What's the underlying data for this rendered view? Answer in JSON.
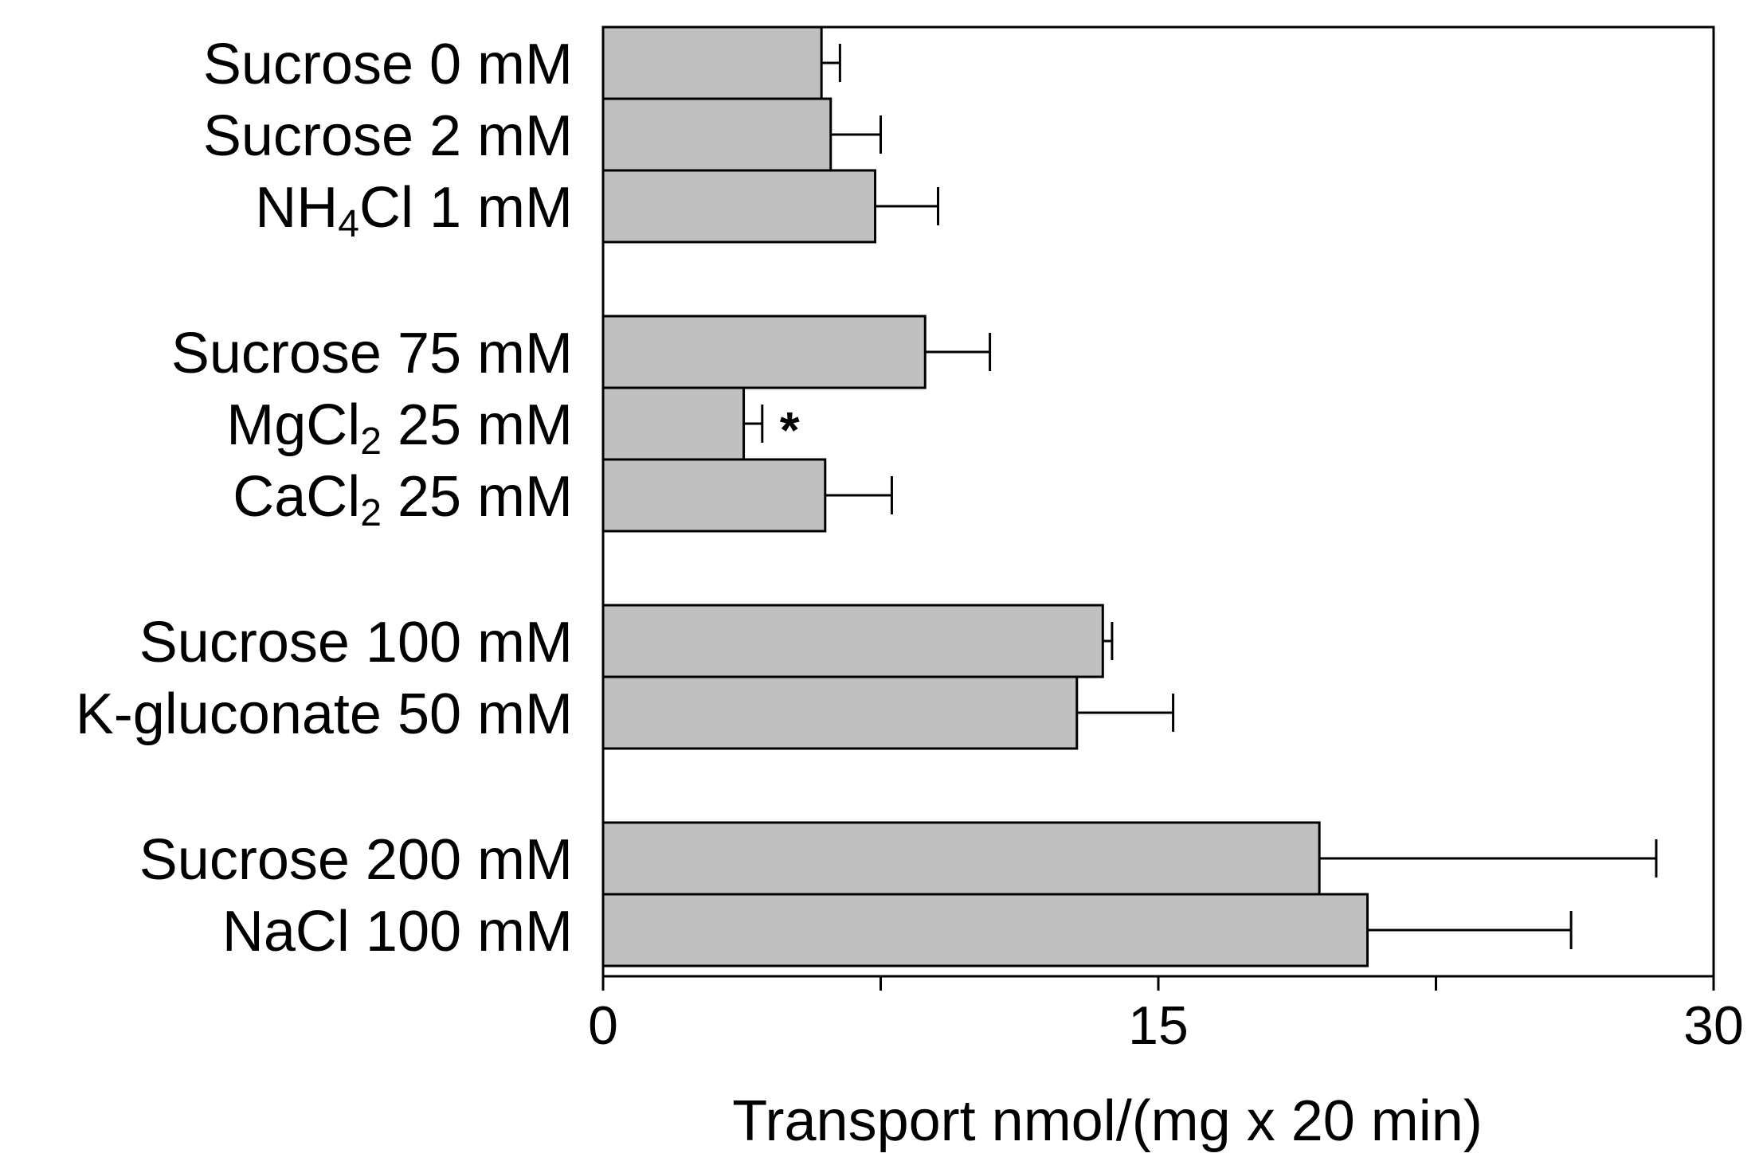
{
  "chart_data": {
    "type": "bar",
    "orientation": "horizontal",
    "title": "",
    "xlabel": "Transport  nmol/(mg x 20 min)",
    "ylabel": "",
    "xlim": [
      0,
      30
    ],
    "xticks": [
      0,
      15,
      30
    ],
    "xticks_minor": [
      7.5,
      22.5
    ],
    "grid": false,
    "bar_color": "#c0c0c0",
    "edge_color": "#000000",
    "groups": [
      {
        "bars": [
          {
            "label": "Sucrose 0 mM",
            "value": 5.9,
            "error": 0.5
          },
          {
            "label": "Sucrose 2 mM",
            "value": 6.15,
            "error": 1.35
          },
          {
            "label": "NH4Cl 1 mM",
            "value": 7.35,
            "error": 1.7
          }
        ]
      },
      {
        "bars": [
          {
            "label": "Sucrose 75 mM",
            "value": 8.7,
            "error": 1.75
          },
          {
            "label": "MgCl2 25 mM",
            "value": 3.8,
            "error": 0.5,
            "annotation": "*"
          },
          {
            "label": "CaCl2 25 mM",
            "value": 6.0,
            "error": 1.8
          }
        ]
      },
      {
        "bars": [
          {
            "label": "Sucrose 100 mM",
            "value": 13.5,
            "error": 0.25
          },
          {
            "label": "K-gluconate 50 mM",
            "value": 12.8,
            "error": 2.6
          }
        ]
      },
      {
        "bars": [
          {
            "label": "Sucrose 200 mM",
            "value": 19.35,
            "error": 9.1
          },
          {
            "label": "NaCl 100 mM",
            "value": 20.65,
            "error": 5.5
          }
        ]
      }
    ]
  },
  "labels": {
    "nh4cl": {
      "pre": "NH",
      "sub": "4",
      "post": "Cl 1 mM"
    },
    "mgcl2": {
      "pre": "MgCl",
      "sub": "2",
      "post": " 25 mM"
    },
    "cacl2": {
      "pre": "CaCl",
      "sub": "2",
      "post": " 25 mM"
    }
  }
}
